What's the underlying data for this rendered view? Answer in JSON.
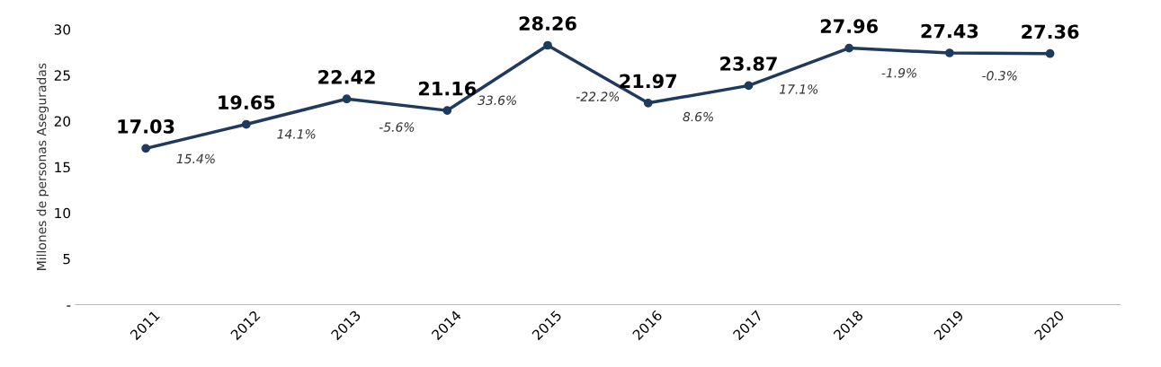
{
  "chart_data": {
    "type": "line",
    "ylabel": "Millones de personas Aseguradas",
    "categories": [
      "2011",
      "2012",
      "2013",
      "2014",
      "2015",
      "2016",
      "2017",
      "2018",
      "2019",
      "2020"
    ],
    "series": [
      {
        "color": "#1f3a5c",
        "values": [
          17.03,
          19.65,
          22.42,
          21.16,
          28.26,
          21.97,
          23.87,
          27.96,
          27.43,
          27.36
        ]
      }
    ],
    "ylim": [
      0,
      30
    ],
    "yticks": [
      {
        "value": 0,
        "label": "-"
      },
      5,
      10,
      15,
      20,
      25,
      30
    ],
    "data_labels": true,
    "marker": "circle",
    "line_style": "solid",
    "grid": false,
    "legend": false,
    "annotations": [
      "15.4%",
      "14.1%",
      "-5.6%",
      "33.6%",
      "-22.2%",
      "8.6%",
      "17.1%",
      "-1.9%",
      "-0.3%"
    ]
  }
}
